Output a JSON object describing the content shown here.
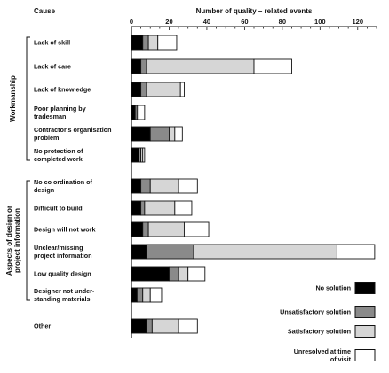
{
  "chart_data": {
    "type": "bar",
    "stacked": true,
    "orientation": "horizontal",
    "column_header": "Cause",
    "xlabel": "Number of quality – related events",
    "xlim": [
      0,
      130
    ],
    "xticks": [
      0,
      20,
      40,
      60,
      80,
      100,
      120
    ],
    "grid": false,
    "legend_position": "bottom-right",
    "categories": [
      [
        "Lack of skill"
      ],
      [
        "Lack of care"
      ],
      [
        "Lack of knowledge"
      ],
      [
        "Poor planning by",
        "tradesman"
      ],
      [
        "Contractor's organisation",
        "problem"
      ],
      [
        "No protection of",
        "completed work"
      ],
      [
        "No co ordination of",
        "design"
      ],
      [
        "Difficult to build"
      ],
      [
        "Design will not work"
      ],
      [
        "Unclear/missing",
        "project information"
      ],
      [
        "Low quality design"
      ],
      [
        "Designer not under-",
        "standing materials"
      ],
      [
        "Other"
      ]
    ],
    "groups": [
      {
        "label": "Workmanship",
        "first": 0,
        "last": 5
      },
      {
        "label": "Aspects of design or project information",
        "first": 6,
        "last": 11
      }
    ],
    "series": [
      {
        "name": "No solution",
        "fill": "#000000",
        "values": [
          6,
          5,
          5,
          2,
          10,
          4,
          5,
          5,
          6,
          8,
          20,
          3,
          8
        ]
      },
      {
        "name": "Unsatisfactory solution",
        "fill": "#8a8a8a",
        "values": [
          3,
          3,
          3,
          1,
          10,
          1,
          5,
          2,
          3,
          25,
          5,
          3,
          3
        ]
      },
      {
        "name": "Satisfactory solution",
        "fill": "#d6d6d6",
        "values": [
          5,
          57,
          18,
          1,
          3,
          1,
          15,
          16,
          19,
          76,
          5,
          4,
          14
        ]
      },
      {
        "name": "Unresolved at time of visit",
        "fill": "#ffffff",
        "values": [
          10,
          20,
          2,
          3,
          4,
          1,
          10,
          9,
          13,
          20,
          9,
          6,
          10
        ]
      }
    ],
    "legend_labels": [
      [
        "No solution"
      ],
      [
        "Unsatisfactory solution"
      ],
      [
        "Satisfactory solution"
      ],
      [
        "Unresolved at time",
        "of visit"
      ]
    ]
  }
}
